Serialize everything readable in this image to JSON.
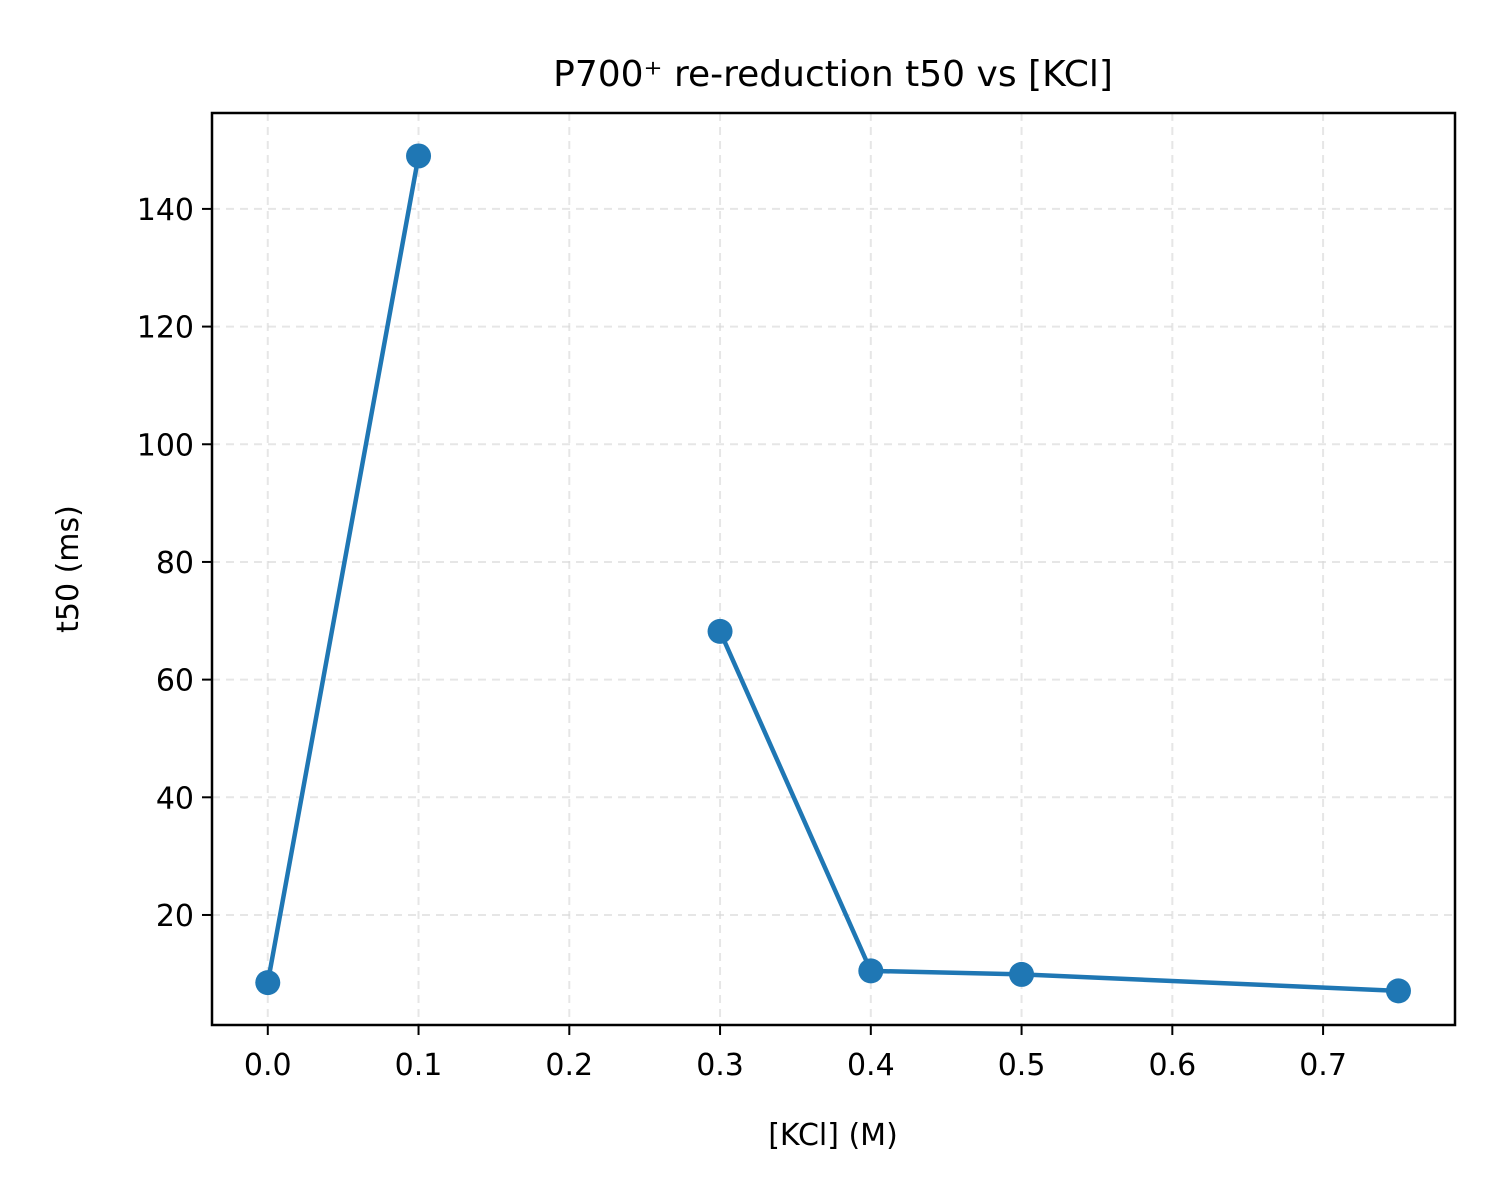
{
  "chart_data": {
    "type": "line",
    "title": "P700⁺ re-reduction t50 vs [KCl]",
    "xlabel": "[KCl] (M)",
    "ylabel": "t50 (ms)",
    "xlim": [
      -0.037,
      0.7875
    ],
    "ylim": [
      1.3,
      156.3
    ],
    "xticks": [
      0.0,
      0.1,
      0.2,
      0.3,
      0.4,
      0.5,
      0.6,
      0.7
    ],
    "xtick_labels": [
      "0.0",
      "0.1",
      "0.2",
      "0.3",
      "0.4",
      "0.5",
      "0.6",
      "0.7"
    ],
    "yticks": [
      20,
      40,
      60,
      80,
      100,
      120,
      140
    ],
    "ytick_labels": [
      "20",
      "40",
      "60",
      "80",
      "100",
      "120",
      "140"
    ],
    "grid": true,
    "color": "#1f77b4",
    "series": [
      {
        "segments": [
          [
            [
              0.0,
              8.5
            ],
            [
              0.1,
              149.0
            ]
          ],
          [
            [
              0.3,
              68.2
            ],
            [
              0.4,
              10.5
            ],
            [
              0.5,
              9.9
            ],
            [
              0.75,
              7.1
            ]
          ]
        ]
      }
    ]
  }
}
